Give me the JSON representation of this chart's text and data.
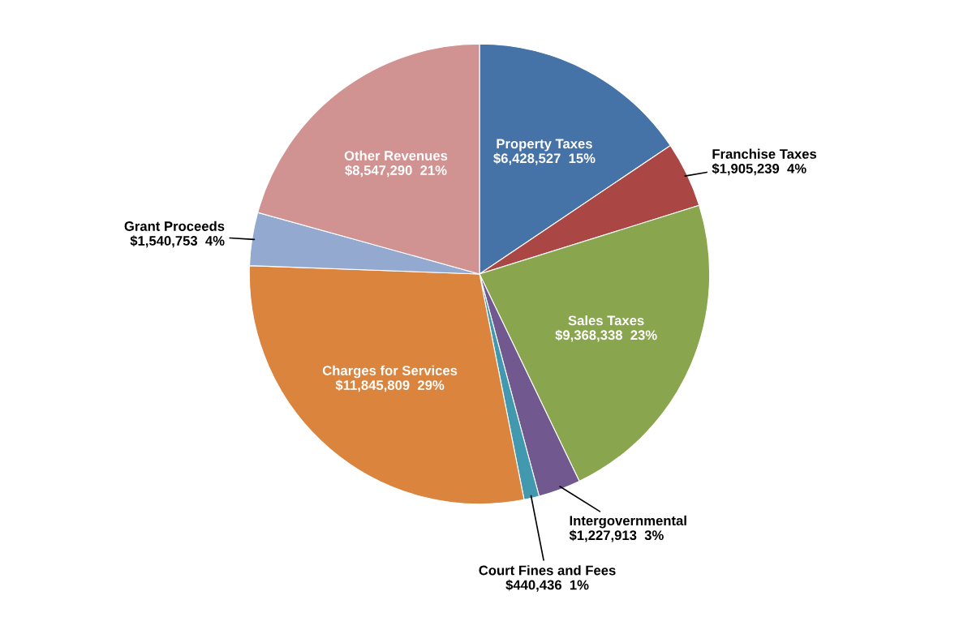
{
  "chart_data": {
    "type": "pie",
    "categories": [
      "Property Taxes",
      "Franchise Taxes",
      "Sales Taxes",
      "Intergovernmental",
      "Court Fines and Fees",
      "Charges for Services",
      "Grant Proceeds",
      "Other Revenues"
    ],
    "values": [
      6428527,
      1905239,
      9368338,
      1227913,
      440436,
      11845809,
      1540753,
      8547290
    ],
    "value_labels": [
      "$6,428,527  15%",
      "$1,905,239  4%",
      "$9,368,338  23%",
      "$1,227,913  3%",
      "$440,436  1%",
      "$11,845,809  29%",
      "$1,540,753  4%",
      "$8,547,290  21%"
    ],
    "colors": [
      "#4572a7",
      "#aa4643",
      "#89a54e",
      "#71588f",
      "#4198af",
      "#db843d",
      "#93a9cf",
      "#d19392"
    ]
  }
}
